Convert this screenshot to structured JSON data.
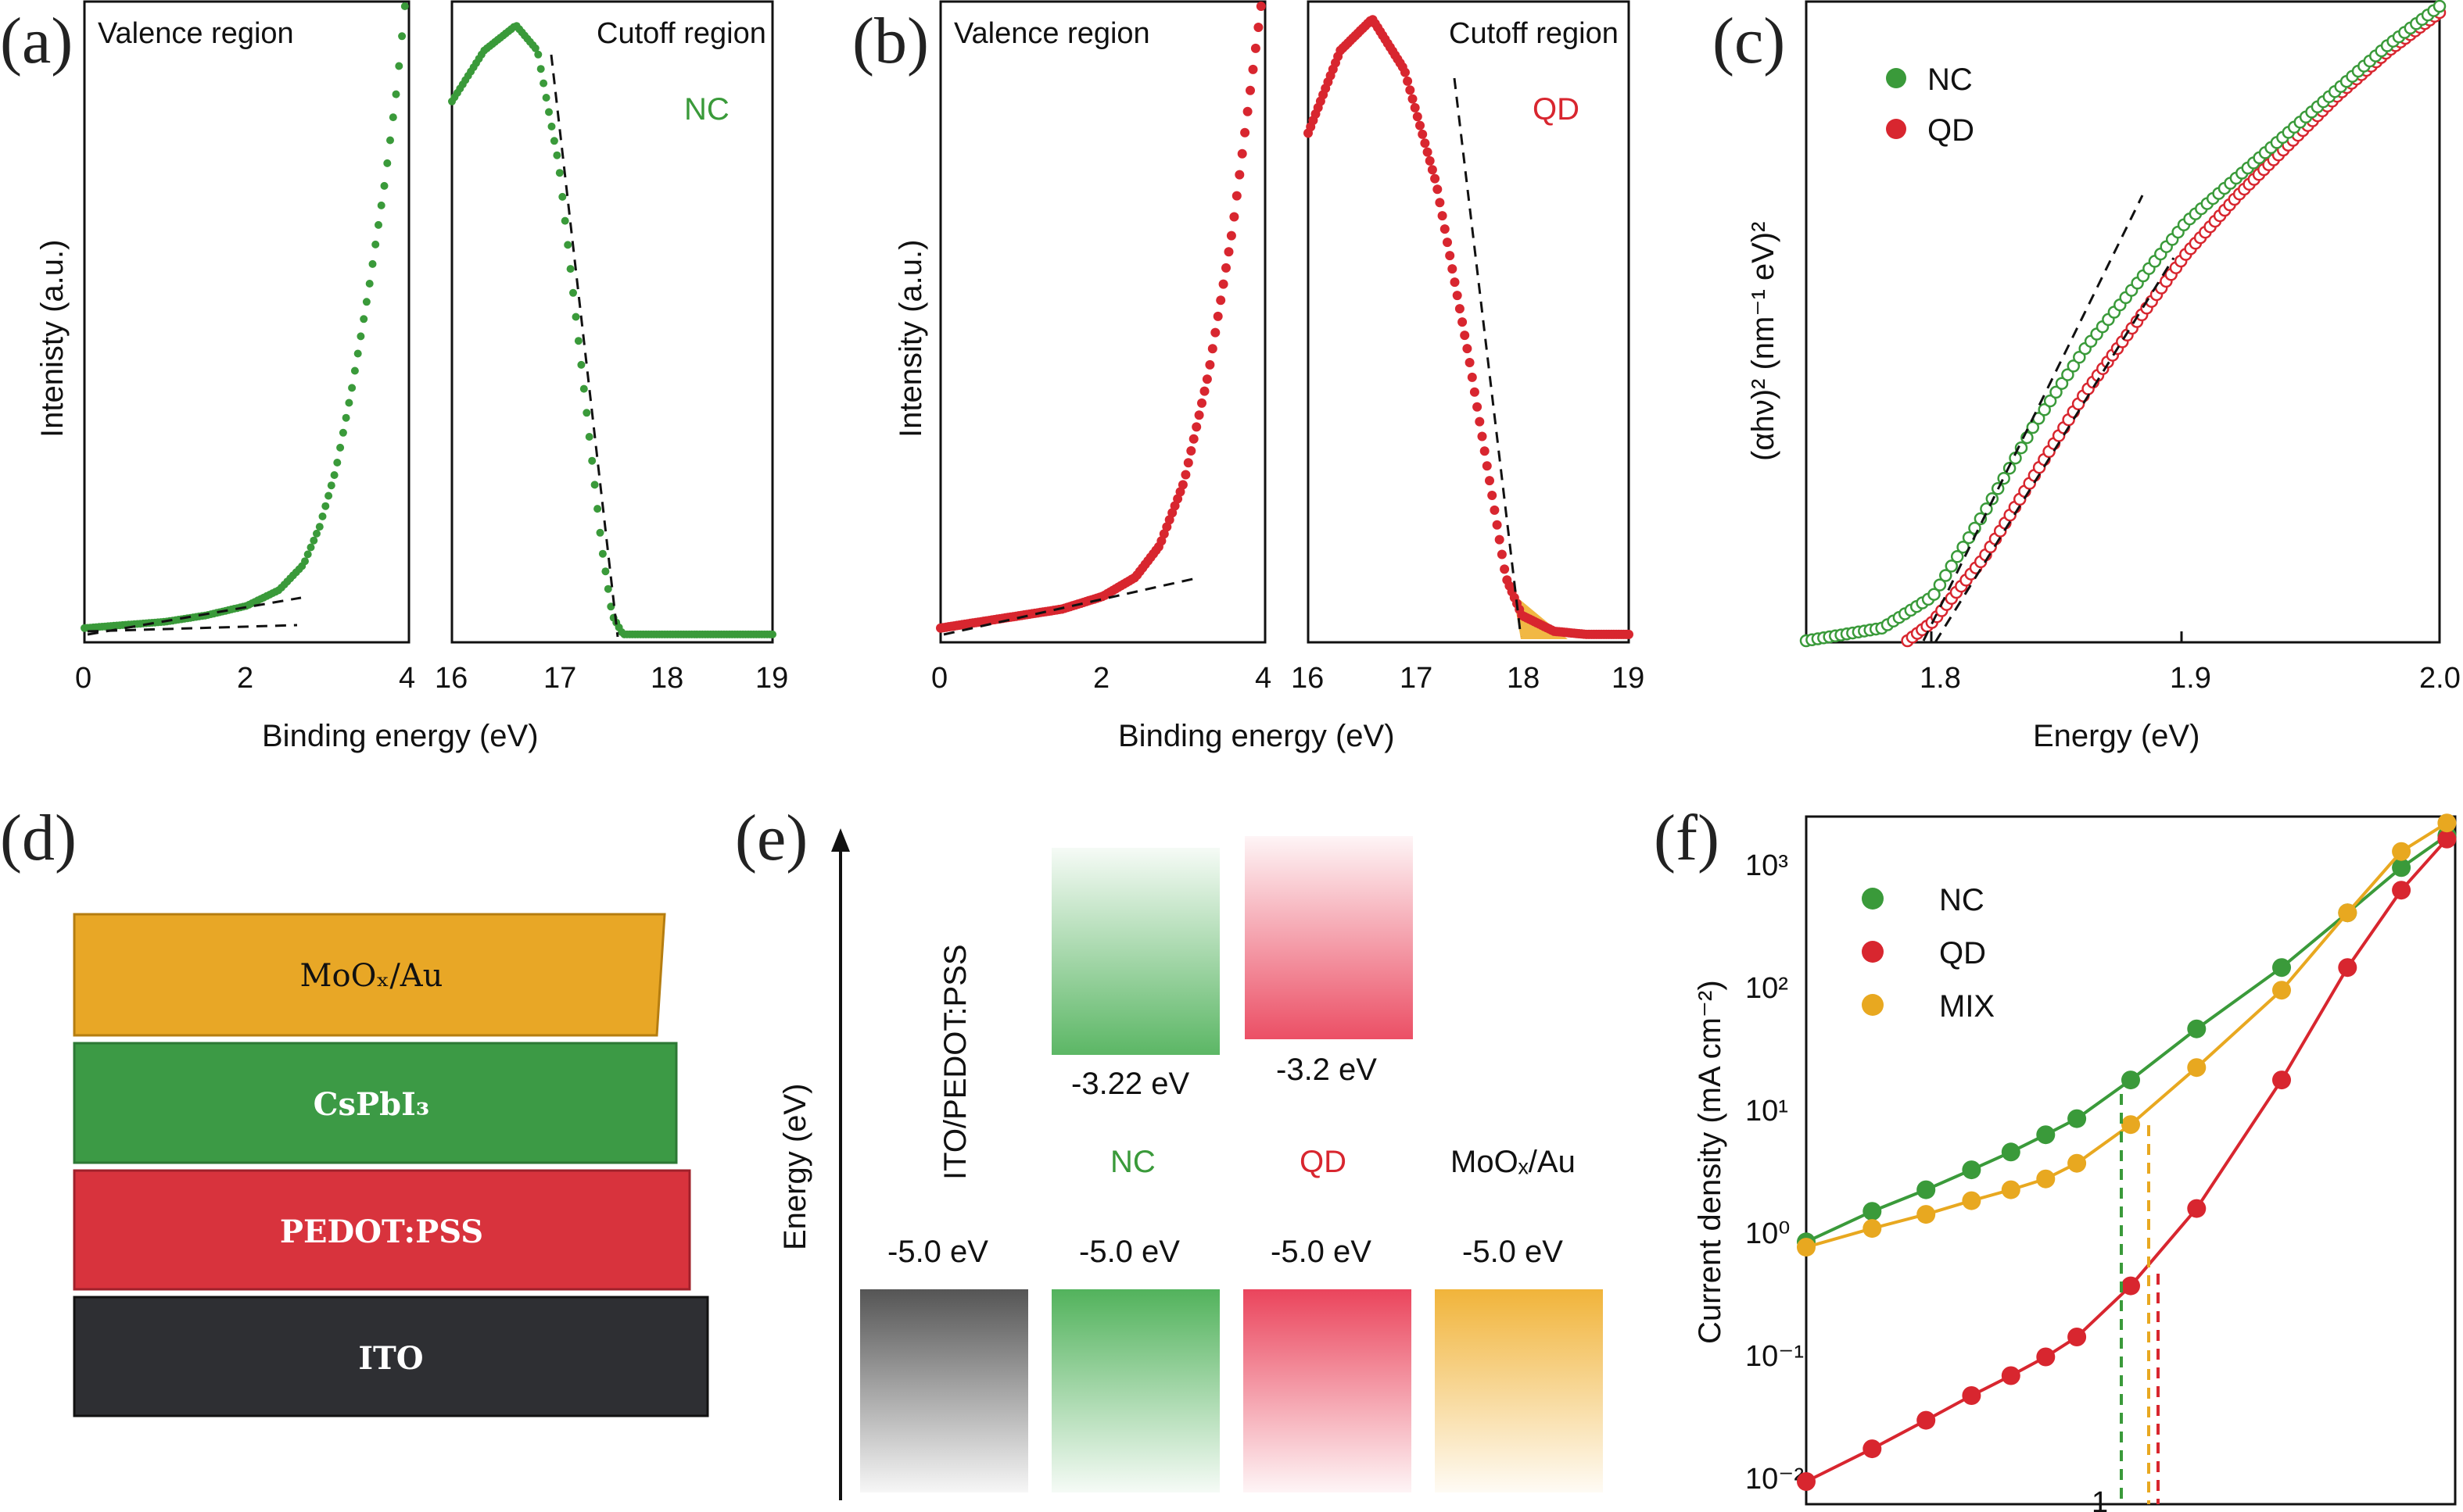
{
  "panels": {
    "a": {
      "label": "(a)",
      "left_title": "Valence region",
      "right_title": "Cutoff region",
      "sample": "NC",
      "xlabel": "Binding energy (eV)",
      "ylabel": "Intenisty (a.u.)",
      "left_ticks": [
        "0",
        "2",
        "4"
      ],
      "right_ticks": [
        "16",
        "17",
        "18",
        "19"
      ]
    },
    "b": {
      "label": "(b)",
      "left_title": "Valence region",
      "right_title": "Cutoff region",
      "sample": "QD",
      "xlabel": "Binding energy (eV)",
      "ylabel": "Intensity (a.u.)",
      "left_ticks": [
        "0",
        "2",
        "4"
      ],
      "right_ticks": [
        "16",
        "17",
        "18",
        "19"
      ]
    },
    "c": {
      "label": "(c)",
      "xlabel": "Energy (eV)",
      "ylabel": "(αhν)² (nm⁻¹ eV)²",
      "xticks": [
        "1.8",
        "1.9",
        "2.0"
      ],
      "legend": [
        "NC",
        "QD"
      ]
    },
    "d": {
      "label": "(d)",
      "layers": [
        "MoOₓ/Au",
        "CsPbI₃",
        "PEDOT:PSS",
        "ITO"
      ]
    },
    "e": {
      "label": "(e)",
      "ylabel": "Energy (eV)",
      "columns": [
        "ITO/PEDOT:PSS",
        "NC",
        "QD",
        "MoOₓ/Au"
      ],
      "cb_labels": [
        "-3.22 eV",
        "-3.2 eV"
      ],
      "vb_labels": [
        "-5.0 eV",
        "-5.0 eV",
        "-5.0 eV",
        "-5.0 eV"
      ]
    },
    "f": {
      "label": "(f)",
      "ylabel": "Current density (mA cm⁻²)",
      "yticks": [
        "10⁻²",
        "10⁻¹",
        "10⁰",
        "10¹",
        "10²",
        "10³"
      ],
      "xtick": "1",
      "legend": [
        "NC",
        "QD",
        "MIX"
      ]
    }
  },
  "colors": {
    "NC": "#3a9a3a",
    "QD": "#d8262f",
    "MIX": "#e8a820",
    "ITO": "#333333",
    "fit": "#111111"
  },
  "chart_data": [
    {
      "type": "scatter",
      "panel": "a-valence",
      "title": "Valence region",
      "xlabel": "Binding energy (eV)",
      "xlim": [
        0,
        4
      ],
      "series": [
        {
          "name": "NC",
          "x": [
            0,
            0.5,
            1.0,
            1.5,
            2.0,
            2.4,
            2.7,
            2.9,
            3.1,
            3.3,
            3.5,
            3.7,
            3.85,
            3.95
          ],
          "y": [
            0.02,
            0.025,
            0.03,
            0.04,
            0.055,
            0.08,
            0.12,
            0.18,
            0.27,
            0.4,
            0.55,
            0.72,
            0.87,
            1.0
          ]
        }
      ]
    },
    {
      "type": "scatter",
      "panel": "a-cutoff",
      "title": "Cutoff region",
      "xlabel": "Binding energy (eV)",
      "xlim": [
        16,
        19
      ],
      "series": [
        {
          "name": "NC",
          "x": [
            16.0,
            16.3,
            16.6,
            16.8,
            17.0,
            17.1,
            17.2,
            17.3,
            17.4,
            17.5,
            17.6,
            18.0,
            18.5,
            19.0
          ],
          "y": [
            0.85,
            0.93,
            0.97,
            0.93,
            0.75,
            0.6,
            0.45,
            0.3,
            0.15,
            0.04,
            0.01,
            0.01,
            0.01,
            0.01
          ]
        }
      ]
    },
    {
      "type": "scatter",
      "panel": "b-valence",
      "title": "Valence region",
      "xlabel": "Binding energy (eV)",
      "xlim": [
        0,
        4
      ],
      "series": [
        {
          "name": "QD",
          "x": [
            0,
            0.5,
            1.0,
            1.5,
            2.0,
            2.4,
            2.7,
            3.0,
            3.3,
            3.6,
            3.8,
            3.95
          ],
          "y": [
            0.02,
            0.03,
            0.04,
            0.05,
            0.07,
            0.1,
            0.15,
            0.25,
            0.42,
            0.65,
            0.85,
            1.0
          ]
        }
      ]
    },
    {
      "type": "scatter",
      "panel": "b-cutoff",
      "title": "Cutoff region",
      "xlabel": "Binding energy (eV)",
      "xlim": [
        16,
        19
      ],
      "series": [
        {
          "name": "QD",
          "x": [
            16.0,
            16.3,
            16.6,
            16.9,
            17.2,
            17.5,
            17.7,
            17.85,
            18.0,
            18.3,
            18.6,
            19.0
          ],
          "y": [
            0.8,
            0.93,
            0.98,
            0.9,
            0.72,
            0.45,
            0.25,
            0.1,
            0.04,
            0.015,
            0.01,
            0.01
          ]
        }
      ]
    },
    {
      "type": "scatter",
      "panel": "c",
      "xlabel": "Energy (eV)",
      "ylabel": "(αhν)² (nm⁻¹ eV)²",
      "xlim": [
        1.75,
        2.0
      ],
      "series": [
        {
          "name": "NC",
          "x": [
            1.75,
            1.78,
            1.8,
            1.82,
            1.84,
            1.86,
            1.88,
            1.9,
            1.92,
            1.94,
            1.96,
            1.98,
            2.0
          ],
          "y": [
            0.0,
            0.02,
            0.07,
            0.2,
            0.34,
            0.46,
            0.56,
            0.66,
            0.73,
            0.8,
            0.87,
            0.94,
            1.0
          ]
        },
        {
          "name": "QD",
          "x": [
            1.79,
            1.8,
            1.82,
            1.84,
            1.86,
            1.88,
            1.9,
            1.92,
            1.94,
            1.96,
            1.98,
            2.0
          ],
          "y": [
            0.0,
            0.03,
            0.13,
            0.26,
            0.39,
            0.5,
            0.61,
            0.7,
            0.78,
            0.86,
            0.93,
            0.99
          ]
        }
      ]
    },
    {
      "type": "scatter",
      "panel": "f",
      "ylabel": "Current density (mA cm⁻²)",
      "yscale": "log",
      "xscale": "log",
      "ylim": [
        0.01,
        2000
      ],
      "series": [
        {
          "name": "NC",
          "x": [
            0.4,
            0.5,
            0.6,
            0.7,
            0.8,
            0.9,
            1.0,
            1.2,
            1.5,
            2.0,
            2.5,
            3.0,
            3.5
          ],
          "y": [
            1.1,
            1.9,
            2.8,
            4.0,
            5.5,
            7.5,
            10,
            20,
            50,
            150,
            400,
            900,
            1600
          ]
        },
        {
          "name": "QD",
          "x": [
            0.4,
            0.5,
            0.6,
            0.7,
            0.8,
            0.9,
            1.0,
            1.2,
            1.5,
            2.0,
            2.5,
            3.0,
            3.5
          ],
          "y": [
            0.015,
            0.027,
            0.045,
            0.07,
            0.1,
            0.14,
            0.2,
            0.5,
            2.0,
            20,
            150,
            600,
            1500
          ]
        },
        {
          "name": "MIX",
          "x": [
            0.4,
            0.5,
            0.6,
            0.7,
            0.8,
            0.9,
            1.0,
            1.2,
            1.5,
            2.0,
            2.5,
            3.0,
            3.5
          ],
          "y": [
            1.0,
            1.4,
            1.8,
            2.3,
            2.8,
            3.4,
            4.5,
            9,
            25,
            100,
            400,
            1200,
            2000
          ]
        }
      ]
    }
  ]
}
